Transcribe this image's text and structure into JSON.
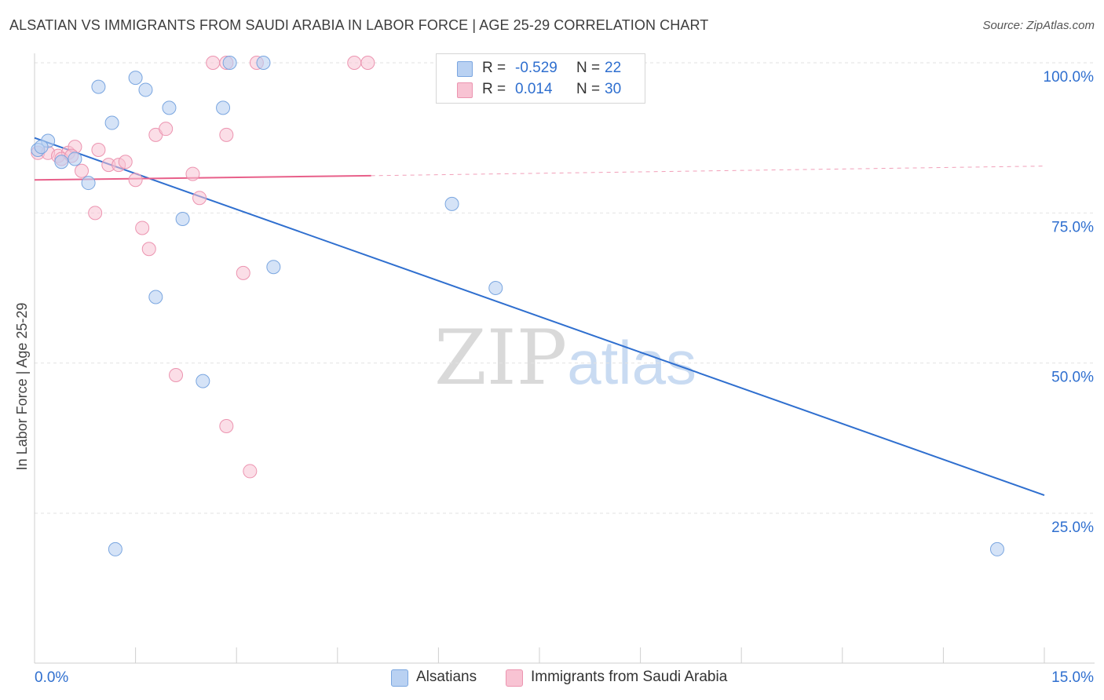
{
  "title": "ALSATIAN VS IMMIGRANTS FROM SAUDI ARABIA IN LABOR FORCE | AGE 25-29 CORRELATION CHART",
  "source": "Source: ZipAtlas.com",
  "watermark": {
    "zip": "ZIP",
    "atlas": "atlas"
  },
  "colors": {
    "blue_fill": "#b9d1f2",
    "blue_stroke": "#7aa6e0",
    "blue_line": "#2f6fcf",
    "pink_fill": "#f8c3d3",
    "pink_stroke": "#ec94b0",
    "pink_line": "#e8608a",
    "value_text": "#2f6fcf"
  },
  "legend": {
    "rows": [
      {
        "label": "R =",
        "r": "-0.529",
        "n_label": "N =",
        "n": "22",
        "color": "#b9d1f2",
        "border": "#7aa6e0"
      },
      {
        "label": "R =",
        "r": "0.014",
        "n_label": "N =",
        "n": "30",
        "color": "#f8c3d3",
        "border": "#ec94b0"
      }
    ]
  },
  "bottom_legend": [
    {
      "label": "Alsatians",
      "color": "#b9d1f2",
      "border": "#7aa6e0"
    },
    {
      "label": "Immigrants from Saudi Arabia",
      "color": "#f8c3d3",
      "border": "#ec94b0"
    }
  ],
  "chart_data": {
    "type": "scatter",
    "title": "ALSATIAN VS IMMIGRANTS FROM SAUDI ARABIA IN LABOR FORCE | AGE 25-29 CORRELATION CHART",
    "xlabel": "",
    "ylabel": "In Labor Force | Age 25-29",
    "xlim": [
      0,
      15
    ],
    "ylim": [
      0,
      102
    ],
    "x_tick_labels": [
      "0.0%",
      "15.0%"
    ],
    "y_ticks": [
      25,
      50,
      75,
      100
    ],
    "y_tick_labels": [
      "25.0%",
      "50.0%",
      "75.0%",
      "100.0%"
    ],
    "x_minor_ticks": [
      0,
      1.5,
      3,
      4.5,
      6,
      7.5,
      9,
      10.5,
      12,
      13.5,
      15
    ],
    "grid": true,
    "series": [
      {
        "name": "Alsatians",
        "R": -0.529,
        "N": 22,
        "points": [
          [
            0.05,
            85.5
          ],
          [
            0.2,
            87
          ],
          [
            0.4,
            83.5
          ],
          [
            0.6,
            84
          ],
          [
            0.8,
            80
          ],
          [
            0.95,
            96
          ],
          [
            1.15,
            90
          ],
          [
            1.5,
            97.5
          ],
          [
            1.65,
            95.5
          ],
          [
            2.0,
            92.5
          ],
          [
            2.8,
            92.5
          ],
          [
            2.9,
            100
          ],
          [
            3.4,
            100
          ],
          [
            2.2,
            74
          ],
          [
            3.55,
            66
          ],
          [
            1.8,
            61
          ],
          [
            2.5,
            47
          ],
          [
            6.2,
            76.5
          ],
          [
            6.85,
            62.5
          ],
          [
            1.2,
            19
          ],
          [
            14.3,
            19
          ],
          [
            0.1,
            86
          ]
        ],
        "trend": {
          "x0": 0,
          "y0": 87.5,
          "x1": 15,
          "y1": 28
        }
      },
      {
        "name": "Immigrants from Saudi Arabia",
        "R": 0.014,
        "N": 30,
        "points": [
          [
            0.05,
            85
          ],
          [
            0.2,
            85
          ],
          [
            0.35,
            84.5
          ],
          [
            0.5,
            85
          ],
          [
            0.6,
            86
          ],
          [
            0.7,
            82
          ],
          [
            0.95,
            85.5
          ],
          [
            1.1,
            83
          ],
          [
            1.25,
            83
          ],
          [
            1.35,
            83.5
          ],
          [
            1.5,
            80.5
          ],
          [
            1.8,
            88
          ],
          [
            1.95,
            89
          ],
          [
            2.35,
            81.5
          ],
          [
            2.45,
            77.5
          ],
          [
            0.9,
            75
          ],
          [
            1.6,
            72.5
          ],
          [
            1.7,
            69
          ],
          [
            2.65,
            100
          ],
          [
            2.85,
            100
          ],
          [
            3.3,
            100
          ],
          [
            4.75,
            100
          ],
          [
            4.95,
            100
          ],
          [
            2.85,
            88
          ],
          [
            3.1,
            65
          ],
          [
            2.1,
            48
          ],
          [
            2.85,
            39.5
          ],
          [
            3.2,
            32
          ],
          [
            0.4,
            84
          ],
          [
            0.55,
            84.5
          ]
        ],
        "trend_solid": {
          "x0": 0,
          "y0": 80.5,
          "x1": 5.0,
          "y1": 81.2
        },
        "trend_dashed": {
          "x0": 5.0,
          "y0": 81.2,
          "x1": 15,
          "y1": 82.8
        }
      }
    ]
  }
}
